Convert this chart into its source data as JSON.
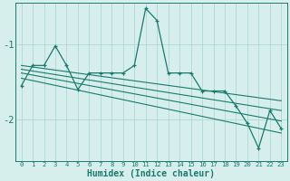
{
  "xlabel": "Humidex (Indice chaleur)",
  "x": [
    0,
    1,
    2,
    3,
    4,
    5,
    6,
    7,
    8,
    9,
    10,
    11,
    12,
    13,
    14,
    15,
    16,
    17,
    18,
    19,
    20,
    21,
    22,
    23
  ],
  "line1": [
    -1.55,
    -1.28,
    -1.28,
    -1.02,
    -1.28,
    -1.6,
    -1.38,
    -1.38,
    -1.38,
    -1.38,
    -1.28,
    -0.52,
    -0.68,
    -1.38,
    -1.38,
    -1.38,
    -1.62,
    -1.62,
    -1.62,
    -1.82,
    -2.05,
    -2.38,
    -1.88,
    -2.12
  ],
  "trend_lines": [
    [
      -1.28,
      -1.75
    ],
    [
      -1.33,
      -1.88
    ],
    [
      -1.38,
      -2.02
    ],
    [
      -1.45,
      -2.18
    ]
  ],
  "color": "#1a7a6e",
  "bg_color": "#d6efed",
  "grid_color": "#b0d8d5",
  "ylim": [
    -2.55,
    -0.45
  ],
  "yticks": [
    -2.0,
    -1.0
  ],
  "xlim": [
    -0.5,
    23.5
  ]
}
